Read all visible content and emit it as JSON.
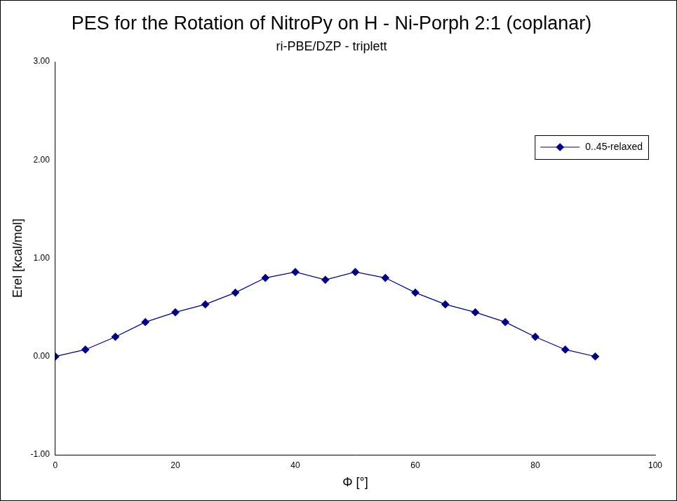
{
  "chart_data": {
    "type": "line",
    "title": "PES for the Rotation of NitroPy on H - Ni-Porph 2:1 (coplanar)",
    "subtitle": "ri-PBE/DZP - triplett",
    "x_label": "Φ [°]",
    "y_label": "Erel [kcal/mol]",
    "x": [
      0,
      5,
      10,
      15,
      20,
      25,
      30,
      35,
      40,
      45,
      50,
      55,
      60,
      65,
      70,
      75,
      80,
      85,
      90
    ],
    "series": [
      {
        "name": "0..45-relaxed",
        "color": "#000080",
        "marker": "diamond",
        "line_style": "solid",
        "values": [
          0,
          0.07,
          0.2,
          0.35,
          0.45,
          0.53,
          0.65,
          0.8,
          0.86,
          0.78,
          0.86,
          0.8,
          0.65,
          0.53,
          0.45,
          0.35,
          0.2,
          0.07,
          0
        ]
      }
    ],
    "xlim": [
      0,
      100
    ],
    "xticks": [
      0,
      20,
      40,
      60,
      80,
      100
    ],
    "ylim": [
      -1,
      3
    ],
    "yticks": [
      {
        "value": -1,
        "label": "-1.00"
      },
      {
        "value": 0,
        "label": "0.00"
      },
      {
        "value": 1,
        "label": "1.00"
      },
      {
        "value": 2,
        "label": "2.00"
      },
      {
        "value": 3,
        "label": "3.00"
      }
    ],
    "grid": false,
    "legend": "top-right"
  }
}
